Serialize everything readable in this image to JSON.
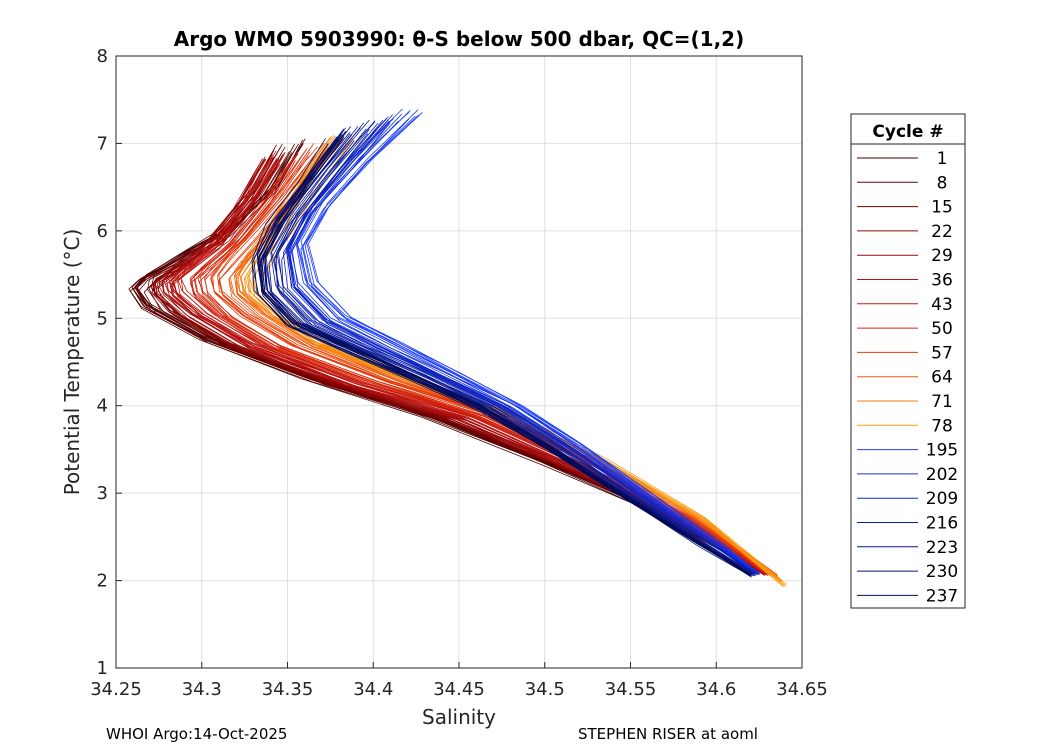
{
  "chart_data": {
    "type": "line",
    "title": "Argo WMO 5903990: θ-S below 500 dbar,  QC=(1,2)",
    "xlabel": "Salinity",
    "ylabel": "Potential Temperature (°C)",
    "xlim": [
      34.25,
      34.65
    ],
    "ylim": [
      1,
      8
    ],
    "xticks": [
      "34.25",
      "34.3",
      "34.35",
      "34.4",
      "34.45",
      "34.5",
      "34.55",
      "34.6",
      "34.65"
    ],
    "yticks": [
      "1",
      "2",
      "3",
      "4",
      "5",
      "6",
      "7",
      "8"
    ],
    "grid": true,
    "legend": {
      "title": "Cycle #",
      "placement": "right",
      "entries": [
        {
          "label": "1",
          "color": "#4a0000"
        },
        {
          "label": "8",
          "color": "#5e0000"
        },
        {
          "label": "15",
          "color": "#730000"
        },
        {
          "label": "22",
          "color": "#8c0505"
        },
        {
          "label": "29",
          "color": "#a30a0a"
        },
        {
          "label": "36",
          "color": "#b81010"
        },
        {
          "label": "43",
          "color": "#c81a0c"
        },
        {
          "label": "50",
          "color": "#d82808"
        },
        {
          "label": "57",
          "color": "#e63a06"
        },
        {
          "label": "64",
          "color": "#ef5a10"
        },
        {
          "label": "71",
          "color": "#f57a10"
        },
        {
          "label": "78",
          "color": "#fb9a12"
        },
        {
          "label": "195",
          "color": "#1a3cff"
        },
        {
          "label": "202",
          "color": "#1430e0"
        },
        {
          "label": "209",
          "color": "#1026c4"
        },
        {
          "label": "216",
          "color": "#0c1ea6"
        },
        {
          "label": "223",
          "color": "#08178a"
        },
        {
          "label": "230",
          "color": "#06106e"
        },
        {
          "label": "237",
          "color": "#040b55"
        }
      ]
    },
    "series": [
      {
        "name": "1",
        "s": [
          34.36,
          34.345,
          34.318,
          34.29,
          34.268,
          34.262,
          34.268,
          34.3,
          34.36,
          34.43,
          34.5,
          34.57,
          34.625
        ],
        "t": [
          7.0,
          6.5,
          6.0,
          5.7,
          5.45,
          5.35,
          5.15,
          4.8,
          4.35,
          3.9,
          3.35,
          2.75,
          2.1
        ]
      },
      {
        "name": "8",
        "s": [
          34.35,
          34.335,
          34.312,
          34.287,
          34.27,
          34.264,
          34.272,
          34.305,
          34.365,
          34.435,
          34.505,
          34.572,
          34.626
        ],
        "t": [
          6.95,
          6.45,
          5.95,
          5.65,
          5.45,
          5.33,
          5.1,
          4.75,
          4.3,
          3.88,
          3.33,
          2.74,
          2.1
        ]
      },
      {
        "name": "15",
        "s": [
          34.345,
          34.33,
          34.308,
          34.285,
          34.272,
          34.27,
          34.28,
          34.312,
          34.37,
          34.44,
          34.508,
          34.574,
          34.627
        ],
        "t": [
          6.9,
          6.4,
          5.9,
          5.6,
          5.45,
          5.32,
          5.08,
          4.72,
          4.28,
          3.86,
          3.32,
          2.73,
          2.09
        ]
      },
      {
        "name": "22",
        "s": [
          34.34,
          34.326,
          34.305,
          34.283,
          34.275,
          34.276,
          34.29,
          34.32,
          34.378,
          34.447,
          34.512,
          34.576,
          34.628
        ],
        "t": [
          6.85,
          6.35,
          5.85,
          5.55,
          5.42,
          5.3,
          5.05,
          4.7,
          4.26,
          3.85,
          3.31,
          2.72,
          2.09
        ]
      },
      {
        "name": "29",
        "s": [
          34.338,
          34.324,
          34.304,
          34.284,
          34.278,
          34.28,
          34.295,
          34.326,
          34.384,
          34.452,
          34.515,
          34.578,
          34.629
        ],
        "t": [
          6.8,
          6.3,
          5.82,
          5.52,
          5.4,
          5.28,
          5.03,
          4.68,
          4.25,
          3.85,
          3.31,
          2.72,
          2.08
        ]
      },
      {
        "name": "36",
        "s": [
          34.342,
          34.328,
          34.309,
          34.29,
          34.283,
          34.285,
          34.3,
          34.33,
          34.39,
          34.456,
          34.518,
          34.58,
          34.63
        ],
        "t": [
          6.82,
          6.32,
          5.84,
          5.55,
          5.42,
          5.28,
          5.03,
          4.68,
          4.25,
          3.86,
          3.32,
          2.72,
          2.08
        ]
      },
      {
        "name": "43",
        "s": [
          34.35,
          34.334,
          34.314,
          34.296,
          34.29,
          34.292,
          34.307,
          34.337,
          34.396,
          34.46,
          34.52,
          34.581,
          34.63
        ],
        "t": [
          6.85,
          6.35,
          5.86,
          5.57,
          5.43,
          5.28,
          5.02,
          4.67,
          4.25,
          3.87,
          3.33,
          2.72,
          2.08
        ]
      },
      {
        "name": "50",
        "s": [
          34.36,
          34.342,
          34.322,
          34.305,
          34.298,
          34.3,
          34.315,
          34.345,
          34.402,
          34.465,
          34.523,
          34.583,
          34.631
        ],
        "t": [
          6.9,
          6.4,
          5.9,
          5.6,
          5.45,
          5.28,
          5.02,
          4.67,
          4.26,
          3.88,
          3.34,
          2.72,
          2.07
        ]
      },
      {
        "name": "57",
        "s": [
          34.37,
          34.35,
          34.33,
          34.315,
          34.308,
          34.31,
          34.325,
          34.355,
          34.41,
          34.47,
          34.527,
          34.585,
          34.632
        ],
        "t": [
          6.95,
          6.45,
          5.95,
          5.62,
          5.45,
          5.28,
          5.03,
          4.68,
          4.27,
          3.9,
          3.35,
          2.72,
          2.07
        ]
      },
      {
        "name": "64",
        "s": [
          34.375,
          34.355,
          34.336,
          34.322,
          34.316,
          34.318,
          34.333,
          34.362,
          34.416,
          34.474,
          34.53,
          34.588,
          34.635
        ],
        "t": [
          7.0,
          6.5,
          5.98,
          5.64,
          5.47,
          5.28,
          5.03,
          4.69,
          4.28,
          3.91,
          3.36,
          2.72,
          2.05
        ]
      },
      {
        "name": "71",
        "s": [
          34.38,
          34.36,
          34.342,
          34.33,
          34.324,
          34.326,
          34.34,
          34.368,
          34.42,
          34.478,
          34.533,
          34.59,
          34.638
        ],
        "t": [
          7.05,
          6.55,
          6.0,
          5.66,
          5.48,
          5.29,
          5.04,
          4.7,
          4.29,
          3.92,
          3.37,
          2.72,
          2.0
        ]
      },
      {
        "name": "78",
        "s": [
          34.382,
          34.363,
          34.347,
          34.336,
          34.33,
          34.332,
          34.346,
          34.372,
          34.424,
          34.48,
          34.535,
          34.592,
          34.64
        ],
        "t": [
          7.1,
          6.6,
          6.02,
          5.68,
          5.5,
          5.3,
          5.05,
          4.71,
          4.3,
          3.93,
          3.38,
          2.72,
          1.95
        ]
      },
      {
        "name": "195",
        "s": [
          34.425,
          34.395,
          34.372,
          34.36,
          34.365,
          34.385,
          34.415,
          34.45,
          34.485,
          34.52,
          34.56,
          34.6,
          34.625
        ],
        "t": [
          7.35,
          6.8,
          6.3,
          5.85,
          5.4,
          5.0,
          4.7,
          4.35,
          4.0,
          3.55,
          3.0,
          2.45,
          2.08
        ]
      },
      {
        "name": "202",
        "s": [
          34.415,
          34.388,
          34.366,
          34.354,
          34.358,
          34.377,
          34.407,
          34.443,
          34.48,
          34.516,
          34.557,
          34.598,
          34.624
        ],
        "t": [
          7.3,
          6.75,
          6.25,
          5.8,
          5.38,
          4.98,
          4.68,
          4.34,
          3.99,
          3.54,
          2.99,
          2.44,
          2.08
        ]
      },
      {
        "name": "209",
        "s": [
          34.405,
          34.38,
          34.36,
          34.348,
          34.351,
          34.37,
          34.4,
          34.437,
          34.475,
          34.512,
          34.554,
          34.596,
          34.623
        ],
        "t": [
          7.25,
          6.7,
          6.2,
          5.75,
          5.35,
          4.96,
          4.67,
          4.33,
          3.98,
          3.53,
          2.98,
          2.43,
          2.07
        ]
      },
      {
        "name": "216",
        "s": [
          34.398,
          34.374,
          34.354,
          34.342,
          34.345,
          34.364,
          34.395,
          34.432,
          34.47,
          34.508,
          34.551,
          34.594,
          34.622
        ],
        "t": [
          7.2,
          6.65,
          6.15,
          5.72,
          5.33,
          4.95,
          4.66,
          4.33,
          3.98,
          3.53,
          2.97,
          2.42,
          2.07
        ]
      },
      {
        "name": "223",
        "s": [
          34.39,
          34.368,
          34.35,
          34.338,
          34.34,
          34.358,
          34.39,
          34.428,
          34.466,
          34.505,
          34.549,
          34.592,
          34.621
        ],
        "t": [
          7.15,
          6.6,
          6.12,
          5.7,
          5.32,
          4.94,
          4.65,
          4.32,
          3.98,
          3.52,
          2.96,
          2.41,
          2.06
        ]
      },
      {
        "name": "230",
        "s": [
          34.385,
          34.364,
          34.346,
          34.335,
          34.337,
          34.355,
          34.387,
          34.425,
          34.464,
          34.503,
          34.547,
          34.591,
          34.62
        ],
        "t": [
          7.1,
          6.58,
          6.1,
          5.68,
          5.3,
          4.93,
          4.65,
          4.32,
          3.97,
          3.52,
          2.96,
          2.41,
          2.06
        ]
      },
      {
        "name": "237",
        "s": [
          34.378,
          34.36,
          34.343,
          34.333,
          34.335,
          34.352,
          34.384,
          34.422,
          34.462,
          34.502,
          34.546,
          34.59,
          34.62
        ],
        "t": [
          7.05,
          6.55,
          6.08,
          5.66,
          5.3,
          4.93,
          4.65,
          4.32,
          3.97,
          3.52,
          2.96,
          2.41,
          2.06
        ]
      }
    ]
  },
  "footer": {
    "left": "WHOI Argo:14-Oct-2025",
    "right": "STEPHEN RISER at aoml"
  }
}
